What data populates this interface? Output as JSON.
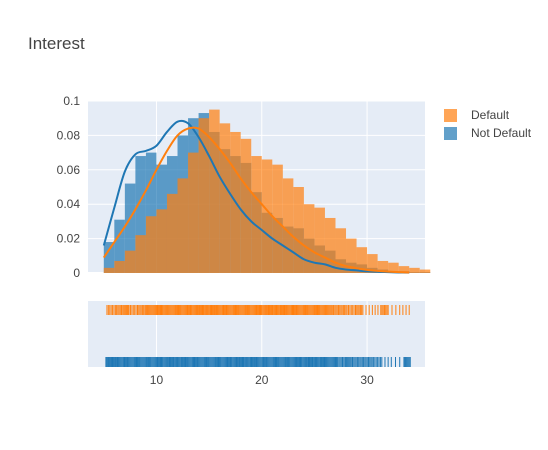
{
  "chart_data": {
    "type": "histogram",
    "title": "Interest",
    "colors": {
      "default": "#ff7f0e",
      "not_default": "#1f77b4",
      "plot_bg": "#e5ecf6"
    },
    "x_range": [
      3.5,
      35.5
    ],
    "y_range": [
      0,
      0.1
    ],
    "y_ticks": [
      "0",
      "0.02",
      "0.04",
      "0.06",
      "0.08",
      "0.1"
    ],
    "x_ticks": [
      "10",
      "20",
      "30"
    ],
    "x_tick_values": [
      10,
      20,
      30
    ],
    "bin_start": 5,
    "bin_width": 1,
    "series": [
      {
        "name": "Default",
        "color": "#ff7f0e",
        "hist": [
          0.003,
          0.007,
          0.013,
          0.022,
          0.033,
          0.037,
          0.046,
          0.055,
          0.07,
          0.09,
          0.095,
          0.087,
          0.082,
          0.078,
          0.068,
          0.066,
          0.063,
          0.055,
          0.05,
          0.04,
          0.038,
          0.032,
          0.026,
          0.02,
          0.015,
          0.011,
          0.007,
          0.006,
          0.004,
          0.003,
          0.002
        ],
        "kde_x": [
          5,
          6,
          7,
          8,
          9,
          10,
          11,
          12,
          13,
          14,
          15,
          16,
          17,
          18,
          19,
          20,
          21,
          22,
          23,
          24,
          25,
          26,
          27,
          28,
          29,
          30,
          31,
          32,
          33,
          34
        ],
        "kde_y": [
          0.009,
          0.018,
          0.027,
          0.037,
          0.048,
          0.06,
          0.071,
          0.08,
          0.084,
          0.084,
          0.079,
          0.072,
          0.064,
          0.055,
          0.047,
          0.04,
          0.033,
          0.027,
          0.021,
          0.016,
          0.012,
          0.009,
          0.006,
          0.004,
          0.0028,
          0.0018,
          0.0012,
          0.0008,
          0.0005,
          0.0003
        ]
      },
      {
        "name": "Not Default",
        "color": "#1f77b4",
        "hist": [
          0.018,
          0.031,
          0.052,
          0.068,
          0.07,
          0.063,
          0.068,
          0.08,
          0.09,
          0.093,
          0.082,
          0.072,
          0.068,
          0.064,
          0.047,
          0.035,
          0.032,
          0.027,
          0.026,
          0.02,
          0.016,
          0.013,
          0.008,
          0.006,
          0.005,
          0.003,
          0.002,
          0.001,
          0.001,
          0.0005,
          0.0005
        ],
        "kde_x": [
          5,
          6,
          7,
          8,
          9,
          10,
          11,
          12,
          13,
          14,
          15,
          16,
          17,
          18,
          19,
          20,
          21,
          22,
          23,
          24,
          25,
          26,
          27,
          28,
          29,
          30,
          31,
          32,
          33,
          34
        ],
        "kde_y": [
          0.016,
          0.038,
          0.059,
          0.069,
          0.071,
          0.074,
          0.082,
          0.088,
          0.087,
          0.079,
          0.068,
          0.056,
          0.046,
          0.037,
          0.03,
          0.025,
          0.02,
          0.016,
          0.012,
          0.008,
          0.006,
          0.005,
          0.003,
          0.002,
          0.0015,
          0.001,
          0.0007,
          0.0005,
          0.0003,
          0.0002
        ]
      }
    ],
    "rug_default": [
      5.3,
      6.1,
      6.8,
      7.4,
      8.2,
      8.9,
      9.5,
      10.1,
      10.6,
      11.2,
      11.8,
      12.3,
      12.9,
      13.4,
      14.0,
      14.5,
      15.1,
      15.6,
      16.2,
      16.7,
      17.3,
      17.8,
      18.4,
      18.9,
      19.5,
      20.0,
      20.6,
      21.1,
      21.7,
      22.2,
      22.8,
      23.3,
      23.9,
      24.4,
      25.0,
      25.5,
      26.1,
      26.7,
      27.4,
      28.1,
      28.9,
      29.6,
      30.5,
      31.3,
      32.0,
      33.1,
      34.0
    ],
    "rug_not_default": [
      5.2,
      5.7,
      6.2,
      6.8,
      7.3,
      7.9,
      8.4,
      9.0,
      9.5,
      10.1,
      10.6,
      11.2,
      11.7,
      12.3,
      12.8,
      13.4,
      13.9,
      14.5,
      15.0,
      15.6,
      16.1,
      16.7,
      17.2,
      17.8,
      18.3,
      18.9,
      19.4,
      20.0,
      20.5,
      21.1,
      21.6,
      22.2,
      22.7,
      23.3,
      23.8,
      24.4,
      24.9,
      25.5,
      26.0,
      26.6,
      27.2,
      27.9,
      28.5,
      29.2,
      29.9,
      30.6,
      31.4,
      32.3,
      33.5,
      34.1
    ]
  }
}
